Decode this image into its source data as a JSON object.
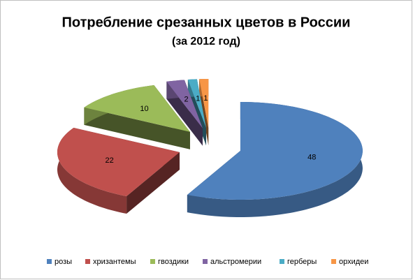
{
  "chart_data": {
    "type": "pie3d",
    "title": "Потребление срезанных цветов в России",
    "subtitle": "(за 2012 год)",
    "categories": [
      "розы",
      "хризантемы",
      "гвоздики",
      "альстромерии",
      "герберы",
      "орхидеи"
    ],
    "values": [
      48,
      22,
      10,
      2,
      1,
      1
    ],
    "colors": [
      "#4f81bd",
      "#c0504d",
      "#9bbb59",
      "#8064a2",
      "#4bacc6",
      "#f79646"
    ],
    "legend": "bottom"
  }
}
